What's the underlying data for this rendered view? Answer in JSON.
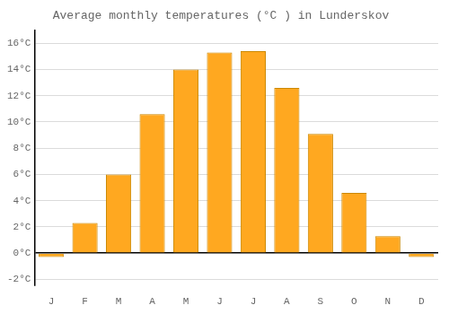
{
  "chart_data": {
    "type": "bar",
    "title": "Average monthly temperatures (°C ) in Lunderskov",
    "categories": [
      "J",
      "F",
      "M",
      "A",
      "M",
      "J",
      "J",
      "A",
      "S",
      "O",
      "N",
      "D"
    ],
    "values": [
      -0.3,
      2.3,
      6.0,
      10.6,
      14.0,
      15.3,
      15.4,
      12.6,
      9.1,
      4.6,
      1.3,
      -0.3
    ],
    "color": "#FFA820",
    "ylim": [
      -2.5,
      17
    ],
    "yticks": [
      {
        "value": -2,
        "label": "-2°C"
      },
      {
        "value": 0,
        "label": "0°C"
      },
      {
        "value": 2,
        "label": "2°C"
      },
      {
        "value": 4,
        "label": "4°C"
      },
      {
        "value": 6,
        "label": "6°C"
      },
      {
        "value": 8,
        "label": "8°C"
      },
      {
        "value": 10,
        "label": "10°C"
      },
      {
        "value": 12,
        "label": "12°C"
      },
      {
        "value": 14,
        "label": "14°C"
      },
      {
        "value": 16,
        "label": "16°C"
      }
    ],
    "grid": true
  }
}
